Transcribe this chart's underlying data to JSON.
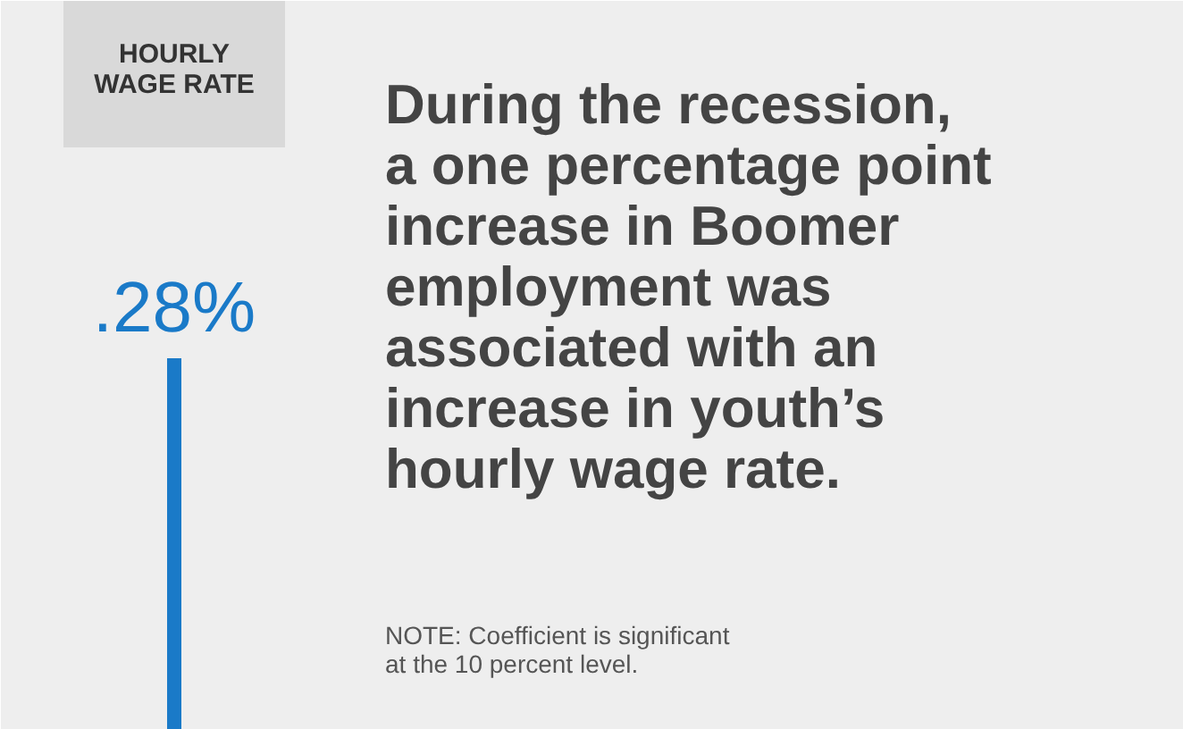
{
  "chart_data": {
    "type": "bar",
    "title": "During the recession, a one percentage point increase in Boomer employment was associated with an increase in youth’s hourly wage rate.",
    "categories": [
      "HOURLY WAGE RATE"
    ],
    "values": [
      0.28
    ],
    "value_labels": [
      ".28%"
    ],
    "color": "#1a7ac8",
    "annotations": [
      "NOTE: Coefficient is significant at the 10 percent level."
    ]
  }
}
